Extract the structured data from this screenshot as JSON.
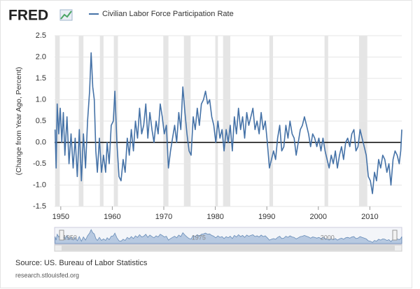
{
  "logo": "FRED",
  "chart_data": {
    "type": "line",
    "y_label": "(Change from Year Ago, Percent)",
    "source": "Source: US. Bureau of Labor Statistics",
    "url": "research.stlouisfed.org",
    "xlim": [
      1948.8,
      2016.2
    ],
    "xticks": [
      1950,
      1960,
      1970,
      1980,
      1990,
      2000,
      2010
    ],
    "ylim": [
      -1.5,
      2.5
    ],
    "yticks": [
      -1.5,
      {
        "value": -1,
        "label": "-1.0"
      },
      -0.5,
      {
        "value": 0,
        "label": "0.0"
      },
      0.5,
      {
        "value": 1,
        "label": "1.0"
      },
      1.5,
      {
        "value": 2,
        "label": "2.0"
      },
      2.5
    ],
    "grid": true,
    "navigator_ticks": [
      1950,
      1975,
      2000
    ],
    "recessions": [
      [
        1948.9,
        1949.8
      ],
      [
        1953.5,
        1954.4
      ],
      [
        1957.6,
        1958.3
      ],
      [
        1960.3,
        1961.1
      ],
      [
        1969.9,
        1970.9
      ],
      [
        1973.9,
        1975.2
      ],
      [
        1980.0,
        1980.5
      ],
      [
        1981.5,
        1982.9
      ],
      [
        1990.5,
        1991.2
      ],
      [
        2001.2,
        2001.9
      ],
      [
        2007.9,
        2009.5
      ]
    ],
    "x": [
      1948.9,
      1949.1,
      1949.3,
      1949.6,
      1949.9,
      1950.2,
      1950.5,
      1950.8,
      1951.2,
      1951.6,
      1952.0,
      1952.4,
      1952.8,
      1953.2,
      1953.6,
      1954.0,
      1954.4,
      1954.8,
      1955.2,
      1955.6,
      1955.9,
      1956.2,
      1956.5,
      1956.8,
      1957.1,
      1957.5,
      1957.9,
      1958.3,
      1958.7,
      1959.0,
      1959.4,
      1959.8,
      1960.2,
      1960.5,
      1960.9,
      1961.3,
      1961.7,
      1962.1,
      1962.5,
      1962.9,
      1963.3,
      1963.7,
      1964.1,
      1964.5,
      1964.9,
      1965.3,
      1965.7,
      1966.1,
      1966.5,
      1966.9,
      1967.3,
      1967.7,
      1968.1,
      1968.5,
      1968.9,
      1969.3,
      1969.7,
      1970.1,
      1970.5,
      1970.9,
      1971.3,
      1971.7,
      1972.1,
      1972.5,
      1972.9,
      1973.3,
      1973.7,
      1974.1,
      1974.5,
      1974.9,
      1975.3,
      1975.7,
      1976.1,
      1976.5,
      1976.9,
      1977.3,
      1977.7,
      1978.1,
      1978.5,
      1978.9,
      1979.3,
      1979.7,
      1980.1,
      1980.5,
      1980.9,
      1981.3,
      1981.7,
      1982.1,
      1982.5,
      1982.9,
      1983.3,
      1983.7,
      1984.1,
      1984.5,
      1984.9,
      1985.3,
      1985.7,
      1986.1,
      1986.5,
      1986.9,
      1987.3,
      1987.7,
      1988.1,
      1988.5,
      1988.9,
      1989.3,
      1989.7,
      1990.1,
      1990.5,
      1990.9,
      1991.3,
      1991.7,
      1992.1,
      1992.5,
      1992.9,
      1993.3,
      1993.7,
      1994.1,
      1994.5,
      1994.9,
      1995.3,
      1995.7,
      1996.1,
      1996.5,
      1996.9,
      1997.3,
      1997.7,
      1998.1,
      1998.5,
      1998.9,
      1999.3,
      1999.7,
      2000.1,
      2000.5,
      2000.9,
      2001.3,
      2001.7,
      2002.1,
      2002.5,
      2002.9,
      2003.3,
      2003.7,
      2004.1,
      2004.5,
      2004.9,
      2005.3,
      2005.7,
      2006.1,
      2006.5,
      2006.9,
      2007.3,
      2007.7,
      2008.1,
      2008.5,
      2008.9,
      2009.3,
      2009.7,
      2010.1,
      2010.5,
      2010.9,
      2011.3,
      2011.7,
      2012.1,
      2012.5,
      2012.9,
      2013.3,
      2013.7,
      2014.1,
      2014.5,
      2014.9,
      2015.3,
      2015.7,
      2016.0,
      2016.2
    ],
    "series": [
      {
        "name": "Civilian Labor Force Participation Rate",
        "color": "#4572a7",
        "values": [
          0.3,
          -0.6,
          0.9,
          0.2,
          0.8,
          0.0,
          0.7,
          -0.3,
          0.6,
          -0.5,
          0.2,
          -0.6,
          0.1,
          -0.8,
          0.3,
          -0.9,
          0.2,
          -0.6,
          0.5,
          1.2,
          2.1,
          1.3,
          1.0,
          -0.2,
          -0.7,
          0.1,
          -0.7,
          -0.3,
          -0.7,
          0.0,
          -0.5,
          0.4,
          0.5,
          1.2,
          0.0,
          -0.8,
          -0.9,
          -0.4,
          -0.7,
          0.1,
          -0.3,
          0.3,
          -0.2,
          0.5,
          0.1,
          0.8,
          0.2,
          0.4,
          0.9,
          0.1,
          0.7,
          0.3,
          0.0,
          0.5,
          0.2,
          0.9,
          0.6,
          0.2,
          0.4,
          -0.6,
          -0.2,
          0.1,
          0.4,
          0.0,
          0.7,
          0.3,
          1.3,
          0.7,
          0.2,
          -0.2,
          -0.3,
          0.6,
          0.3,
          0.8,
          0.4,
          0.9,
          1.0,
          1.2,
          0.9,
          1.0,
          0.6,
          0.4,
          0.0,
          0.5,
          0.1,
          0.3,
          -0.2,
          0.3,
          0.0,
          0.4,
          -0.2,
          0.6,
          0.2,
          0.8,
          0.3,
          0.6,
          0.1,
          0.7,
          0.4,
          0.6,
          0.8,
          0.3,
          0.5,
          0.2,
          0.7,
          0.3,
          0.5,
          0.0,
          -0.6,
          -0.4,
          -0.2,
          -0.4,
          0.1,
          0.4,
          -0.2,
          -0.1,
          0.4,
          0.1,
          0.5,
          0.2,
          0.1,
          -0.3,
          0.0,
          0.3,
          0.4,
          0.6,
          0.4,
          0.2,
          -0.1,
          0.2,
          0.1,
          -0.1,
          0.1,
          -0.2,
          0.1,
          -0.2,
          -0.4,
          -0.6,
          -0.3,
          -0.5,
          -0.2,
          -0.6,
          -0.3,
          -0.1,
          -0.4,
          0.0,
          0.1,
          -0.1,
          0.2,
          0.3,
          -0.2,
          -0.1,
          0.3,
          0.1,
          -0.1,
          -0.3,
          -0.8,
          -0.9,
          -1.2,
          -0.7,
          -0.9,
          -0.4,
          -0.6,
          -0.3,
          -0.4,
          -0.7,
          -0.5,
          -1.0,
          -0.4,
          -0.2,
          -0.3,
          -0.5,
          -0.2,
          0.3
        ]
      }
    ]
  }
}
